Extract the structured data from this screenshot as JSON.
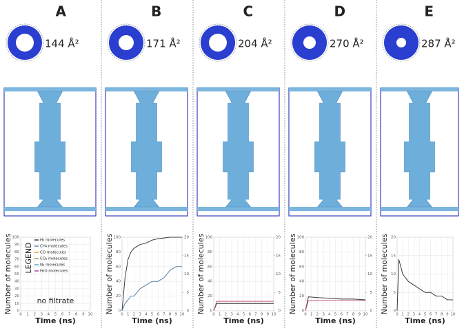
{
  "panels": [
    {
      "label": "A",
      "pore_area": "144 Å²"
    },
    {
      "label": "B",
      "pore_area": "171 Å²"
    },
    {
      "label": "C",
      "pore_area": "204 Å²"
    },
    {
      "label": "D",
      "pore_area": "270 Å²"
    },
    {
      "label": "E",
      "pore_area": "287 Å²"
    }
  ],
  "chart_data": [
    {
      "type": "line",
      "xlabel": "Time (ns)",
      "ylabel": "Number of molecules",
      "xlim": [
        0,
        10
      ],
      "xticks": [
        0,
        1,
        2,
        3,
        4,
        5,
        6,
        7,
        8,
        9,
        10
      ],
      "ylim": [
        0,
        100
      ],
      "yticks": [
        0,
        10,
        20,
        30,
        40,
        50,
        60,
        70,
        80,
        90,
        100
      ],
      "legend_title": "LEGEND",
      "annotation": "no filtrate",
      "grid": true,
      "x": [],
      "series": [
        {
          "name": "H₂ molecules",
          "color": "#3a3a3a",
          "values": []
        },
        {
          "name": "CH₄ molecules",
          "color": "#5b7fa6",
          "values": []
        },
        {
          "name": "CO molecules",
          "color": "#d9a21b",
          "values": []
        },
        {
          "name": "CO₂ molecules",
          "color": "#79b84a",
          "values": []
        },
        {
          "name": "N₂ molecules",
          "color": "#4aa6d6",
          "values": []
        },
        {
          "name": "H₂O molecules",
          "color": "#9a4f9e",
          "values": []
        }
      ]
    },
    {
      "type": "line",
      "xlabel": "Time (ns)",
      "ylabel": "Number of molecules",
      "xlim": [
        0,
        10
      ],
      "xticks": [
        0,
        1,
        2,
        3,
        4,
        5,
        6,
        7,
        8,
        9,
        10
      ],
      "ylim": [
        0,
        100
      ],
      "yticks": [
        0,
        20,
        40,
        60,
        80,
        100
      ],
      "y2lim": [
        0,
        20
      ],
      "y2ticks": [
        0,
        5,
        10,
        15,
        20
      ],
      "grid": true,
      "x": [
        0,
        0.5,
        1,
        1.5,
        2,
        3,
        4,
        5,
        6,
        7,
        8,
        9,
        10
      ],
      "series": [
        {
          "name": "H₂ molecules",
          "color": "#3a3a3a",
          "values": [
            0,
            45,
            70,
            80,
            85,
            90,
            92,
            96,
            98,
            99,
            100,
            100,
            100
          ]
        },
        {
          "name": "CH₄ molecules",
          "color": "#5b7fa6",
          "axis": "y2",
          "values": [
            0,
            2,
            3,
            4,
            4,
            6,
            7,
            8,
            8,
            9,
            11,
            12,
            12
          ]
        }
      ]
    },
    {
      "type": "line",
      "xlabel": "Time (ns)",
      "ylabel": "Number of molecules",
      "xlim": [
        0,
        10
      ],
      "xticks": [
        0,
        1,
        2,
        3,
        4,
        5,
        6,
        7,
        8,
        9,
        10
      ],
      "ylim": [
        0,
        100
      ],
      "yticks": [
        0,
        20,
        40,
        60,
        80,
        100
      ],
      "y2lim": [
        0,
        20
      ],
      "y2ticks": [
        0,
        5,
        10,
        15,
        20
      ],
      "grid": true,
      "x": [
        0,
        0.5,
        10
      ],
      "series": [
        {
          "name": "H₂ molecules",
          "color": "#3a3a3a",
          "values": [
            0,
            10,
            10
          ]
        },
        {
          "name": "H₂O molecules",
          "color": "#c0587e",
          "values": [
            0,
            13,
            13
          ]
        }
      ]
    },
    {
      "type": "line",
      "xlabel": "Time (ns)",
      "ylabel": "Number of molecules",
      "xlim": [
        0,
        10
      ],
      "xticks": [
        0,
        1,
        2,
        3,
        4,
        5,
        6,
        7,
        8,
        9,
        10
      ],
      "ylim": [
        0,
        100
      ],
      "yticks": [
        0,
        20,
        40,
        60,
        80,
        100
      ],
      "y2lim": [
        0,
        20
      ],
      "y2ticks": [
        0,
        5,
        10,
        15,
        20
      ],
      "grid": true,
      "x": [
        0,
        0.5,
        2,
        4,
        6,
        8,
        10
      ],
      "series": [
        {
          "name": "H₂ molecules",
          "color": "#3a3a3a",
          "values": [
            0,
            19,
            18,
            17,
            16,
            16,
            15
          ]
        },
        {
          "name": "H₂O molecules",
          "color": "#c0587e",
          "values": [
            0,
            14,
            14,
            14,
            14,
            14,
            14
          ]
        }
      ]
    },
    {
      "type": "line",
      "xlabel": "Time (ns)",
      "ylabel": "Number of molecules",
      "xlim": [
        0,
        10
      ],
      "xticks": [
        0,
        1,
        2,
        3,
        4,
        5,
        6,
        7,
        8,
        9,
        10
      ],
      "ylim": [
        0,
        20
      ],
      "yticks": [
        0,
        5,
        10,
        15,
        20
      ],
      "grid": true,
      "x": [
        0,
        0.3,
        1,
        2,
        3,
        4,
        5,
        6,
        7,
        8,
        9,
        10
      ],
      "series": [
        {
          "name": "H₂ molecules",
          "color": "#3a3a3a",
          "values": [
            0,
            14,
            10,
            8,
            7,
            6,
            5,
            5,
            4,
            4,
            3,
            3
          ]
        }
      ]
    }
  ]
}
